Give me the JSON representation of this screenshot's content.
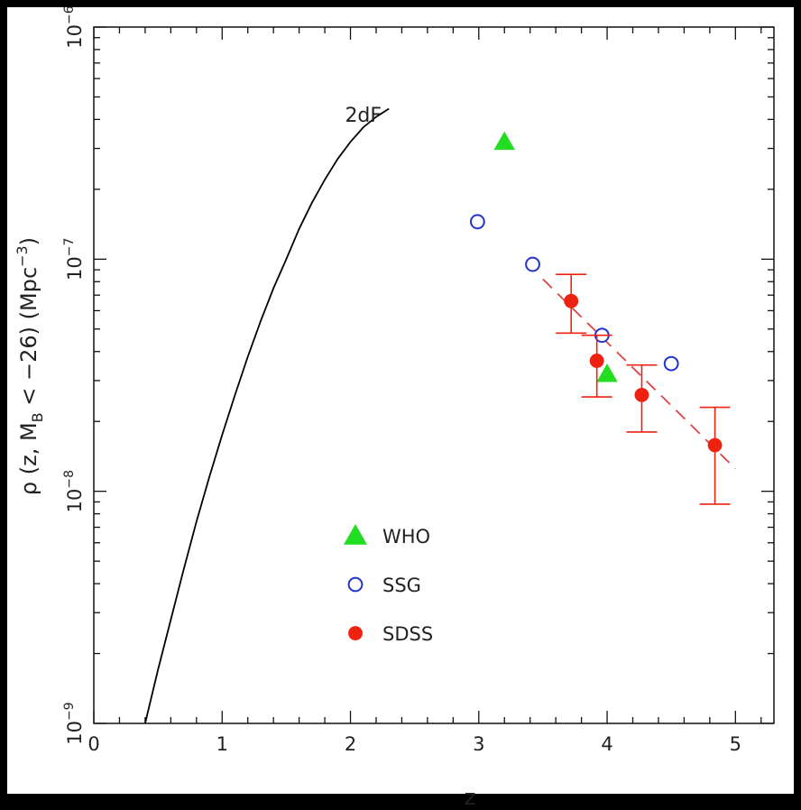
{
  "chart_data": {
    "type": "scatter",
    "xlabel": "z",
    "ylabel": "ρ (z, M_B < −26) (Mpc^−3)",
    "xlim": [
      0,
      5.3
    ],
    "ylim": [
      1e-09,
      1e-06
    ],
    "yscale": "log",
    "x_ticks": [
      0,
      1,
      2,
      3,
      4,
      5
    ],
    "x_tick_labels": [
      "0",
      "1",
      "2",
      "3",
      "4",
      "5"
    ],
    "y_ticks": [
      1e-09,
      1e-08,
      1e-07,
      1e-06
    ],
    "y_tick_labels": [
      {
        "base": "10",
        "exp": "−9"
      },
      {
        "base": "10",
        "exp": "−8"
      },
      {
        "base": "10",
        "exp": "−7"
      },
      {
        "base": "10",
        "exp": "−6"
      }
    ],
    "grid": false,
    "legend_position": "lower-left",
    "annotations": [
      {
        "text": "2dF",
        "x": 2.1,
        "y": 3.9e-07
      }
    ],
    "curve_2dF": {
      "name": "2dF",
      "color": "#000000",
      "x": [
        0.4,
        0.5,
        0.6,
        0.7,
        0.8,
        0.9,
        1.0,
        1.1,
        1.2,
        1.3,
        1.4,
        1.5,
        1.6,
        1.7,
        1.8,
        1.9,
        2.0,
        2.1,
        2.2,
        2.3
      ],
      "y": [
        1e-09,
        1.7e-09,
        2.8e-09,
        4.6e-09,
        7.4e-09,
        1.15e-08,
        1.75e-08,
        2.6e-08,
        3.8e-08,
        5.4e-08,
        7.5e-08,
        1e-07,
        1.35e-07,
        1.75e-07,
        2.2e-07,
        2.7e-07,
        3.2e-07,
        3.7e-07,
        4.1e-07,
        4.45e-07
      ]
    },
    "series": [
      {
        "name": "WHO",
        "marker": "triangle",
        "color": "#22dd22",
        "points": [
          {
            "x": 3.2,
            "y": 3.2e-07
          },
          {
            "x": 4.0,
            "y": 3.2e-08
          }
        ]
      },
      {
        "name": "SSG",
        "marker": "open-circle",
        "color": "#2233cc",
        "points": [
          {
            "x": 2.99,
            "y": 1.45e-07
          },
          {
            "x": 3.42,
            "y": 9.5e-08
          },
          {
            "x": 3.96,
            "y": 4.7e-08
          },
          {
            "x": 4.5,
            "y": 3.55e-08
          }
        ]
      },
      {
        "name": "SDSS",
        "marker": "filled-circle",
        "color": "#ee2211",
        "points": [
          {
            "x": 3.72,
            "y": 6.6e-08,
            "ylo": 4.8e-08,
            "yhi": 8.6e-08
          },
          {
            "x": 3.92,
            "y": 3.65e-08,
            "ylo": 2.55e-08,
            "yhi": 4.7e-08
          },
          {
            "x": 4.27,
            "y": 2.6e-08,
            "ylo": 1.8e-08,
            "yhi": 3.5e-08
          },
          {
            "x": 4.84,
            "y": 1.58e-08,
            "ylo": 8.8e-09,
            "yhi": 2.3e-08
          }
        ]
      }
    ],
    "fit_line": {
      "x": [
        3.5,
        5.0
      ],
      "y": [
        8.2e-08,
        1.25e-08
      ],
      "color": "#dd4444",
      "style": "dashed"
    }
  }
}
